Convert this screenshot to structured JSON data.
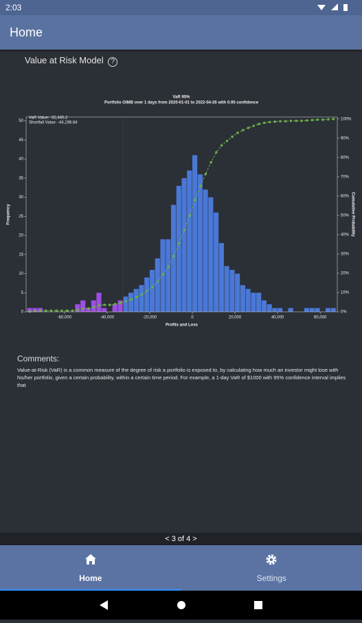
{
  "status_bar": {
    "time": "2:03"
  },
  "app_bar": {
    "title": "Home"
  },
  "section": {
    "title": "Value at Risk Model",
    "help": "?"
  },
  "chart_data": {
    "type": "histogram",
    "title": "VaR 95%",
    "subtitle": "Portfolio OIMB over 1 days from 2020-01-01 to 2022-04-26 with 0.95 confidence",
    "var_label": "VaR Value: -32,445.2",
    "var_value": -32445.2,
    "shortfall_label": "Shortfall Value: -44,196.84",
    "xlabel": "Profits and Loss",
    "ylabel": "Frequency",
    "y2label": "Cumulative Probability",
    "bins": [
      -77500,
      -75000,
      -72500,
      -70000,
      -67500,
      -65000,
      -62500,
      -60000,
      -57500,
      -55000,
      -52500,
      -50000,
      -47500,
      -45000,
      -42500,
      -40000,
      -37500,
      -35000,
      -32500,
      -30000,
      -27500,
      -25000,
      -22500,
      -20000,
      -17500,
      -15000,
      -12500,
      -10000,
      -7500,
      -5000,
      -2500,
      0,
      2500,
      5000,
      7500,
      10000,
      12500,
      15000,
      17500,
      20000,
      22500,
      25000,
      27500,
      30000,
      32500,
      35000,
      37500,
      40000,
      42500,
      45000,
      47500,
      50000,
      52500,
      55000,
      57500,
      60000,
      62500,
      65000,
      67500
    ],
    "values": [
      1,
      1,
      1,
      0,
      0,
      0,
      0,
      0,
      0,
      2,
      3,
      1,
      3,
      5,
      1,
      0,
      2,
      3,
      4,
      5,
      6,
      7,
      9,
      11,
      14,
      19,
      19,
      28,
      33,
      35,
      37,
      41,
      36,
      32,
      30,
      26,
      18,
      12,
      11,
      10,
      7,
      6,
      5,
      5,
      3,
      2,
      1,
      1,
      0,
      1,
      0,
      0,
      1,
      1,
      1,
      0,
      1,
      1
    ],
    "cumulative_values": [
      0.2,
      0.4,
      0.6,
      0.6,
      0.6,
      0.6,
      0.6,
      0.6,
      0.6,
      1.0,
      1.6,
      1.8,
      2.4,
      3.4,
      3.6,
      3.6,
      4.0,
      4.6,
      5.4,
      6.4,
      7.6,
      9.0,
      10.8,
      12.9,
      15.7,
      19.5,
      23.3,
      28.9,
      35.5,
      42.4,
      49.8,
      58.0,
      65.1,
      71.5,
      77.5,
      82.7,
      86.3,
      88.6,
      90.8,
      92.8,
      94.2,
      95.4,
      96.4,
      97.4,
      98.0,
      98.4,
      98.6,
      98.8,
      98.8,
      99.0,
      99.0,
      99.0,
      99.2,
      99.4,
      99.6,
      99.6,
      99.8,
      100.0
    ],
    "color": "#4a78d6",
    "tail_color": "#9b4fe0",
    "cumulative_color": "#6aad4a",
    "var_color": "#8b1c1c",
    "xlim": [
      -78000,
      68000
    ],
    "ylim": [
      0,
      51
    ],
    "y2lim": [
      0,
      101
    ],
    "xticks": [
      {
        "value": -60000,
        "label": "-60,000"
      },
      {
        "value": -40000,
        "label": "-40,000"
      },
      {
        "value": -20000,
        "label": "-20,000"
      },
      0,
      {
        "value": 20000,
        "label": "20,000"
      },
      {
        "value": 40000,
        "label": "40,000"
      },
      {
        "value": 60000,
        "label": "60,000"
      }
    ],
    "yticks": [
      0,
      5,
      10,
      15,
      20,
      25,
      30,
      35,
      40,
      45,
      50
    ],
    "y2ticks": [
      {
        "value": 0,
        "label": "0%"
      },
      {
        "value": 10,
        "label": "10%"
      },
      {
        "value": 20,
        "label": "20%"
      },
      {
        "value": 30,
        "label": "30%"
      },
      {
        "value": 40,
        "label": "40%"
      },
      {
        "value": 50,
        "label": "50%"
      },
      {
        "value": 60,
        "label": "60%"
      },
      {
        "value": 70,
        "label": "70%"
      },
      {
        "value": 80,
        "label": "80%"
      },
      {
        "value": 90,
        "label": "90%"
      },
      {
        "value": 100,
        "label": "100%"
      }
    ]
  },
  "comments": {
    "label": "Comments:",
    "text": "Value-at-Risk (VaR) is a common measure of the degree of risk a portfolio is exposed to, by calculating how much an investor might lose with his/her portfolio, given a certain probability, within a certain time period. For example, a 1-day VaR of $1000 with 95% confidence interval implies that"
  },
  "pager": {
    "label": "< 3 of 4 >"
  },
  "nav": {
    "items": [
      {
        "label": "Home",
        "active": true
      },
      {
        "label": "Settings",
        "active": false
      }
    ]
  }
}
